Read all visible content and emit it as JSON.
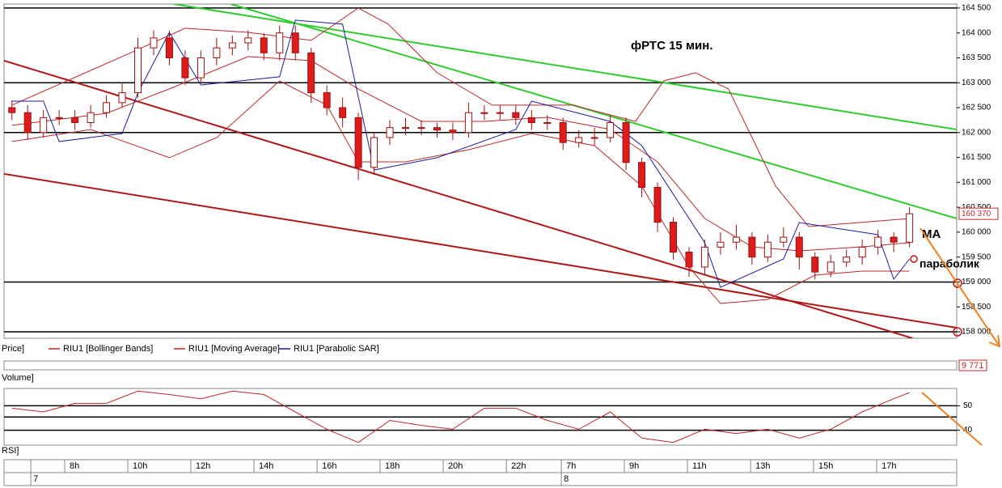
{
  "chart_data": [
    {
      "type": "candlestick",
      "title": "фРТС   15 мин.",
      "price_label": "Price]",
      "last_price_label": "160 370",
      "annotations": [
        "МА",
        "параболик"
      ],
      "xlim": [
        -0.5,
        60
      ],
      "ylim": [
        157870,
        164580
      ],
      "yticks": [
        {
          "value": 158000,
          "label": "158 000"
        },
        {
          "value": 158500,
          "label": "158 500"
        },
        {
          "value": 159000,
          "label": "159 000"
        },
        {
          "value": 159500,
          "label": "159 500"
        },
        {
          "value": 160000,
          "label": "160 000"
        },
        {
          "value": 160500,
          "label": "160 500"
        },
        {
          "value": 161000,
          "label": "161 000"
        },
        {
          "value": 161500,
          "label": "161 500"
        },
        {
          "value": 162000,
          "label": "162 000"
        },
        {
          "value": 162500,
          "label": "162 500"
        },
        {
          "value": 163000,
          "label": "163 000"
        },
        {
          "value": 163500,
          "label": "163 500"
        },
        {
          "value": 164000,
          "label": "164 000"
        },
        {
          "value": 164500,
          "label": "164 500"
        }
      ],
      "xticks": [
        {
          "value": 3.35,
          "label": "8h"
        },
        {
          "value": 7.36,
          "label": "10h"
        },
        {
          "value": 11.36,
          "label": "12h"
        },
        {
          "value": 15.37,
          "label": "14h"
        },
        {
          "value": 19.38,
          "label": "16h"
        },
        {
          "value": 23.38,
          "label": "18h"
        },
        {
          "value": 27.39,
          "label": "20h"
        },
        {
          "value": 31.4,
          "label": "22h"
        },
        {
          "value": 34.89,
          "label": "7h"
        },
        {
          "value": 38.89,
          "label": "9h"
        },
        {
          "value": 42.9,
          "label": "11h"
        },
        {
          "value": 46.91,
          "label": "13h"
        },
        {
          "value": 50.91,
          "label": "15h"
        },
        {
          "value": 54.92,
          "label": "17h"
        }
      ],
      "day_ticks": [
        {
          "value": 1.2,
          "label": "7"
        },
        {
          "value": 34.89,
          "label": "8"
        }
      ],
      "up_color": "#ffffff",
      "down_color": "#dd1c1c",
      "edge_color": "#a01010",
      "open": [
        162500,
        162400,
        162000,
        162300,
        162300,
        162200,
        162400,
        162600,
        162800,
        163700,
        163900,
        163500,
        163100,
        163500,
        163700,
        163800,
        163900,
        163600,
        164000,
        163600,
        162800,
        162500,
        162300,
        161300,
        161900,
        162100,
        162100,
        162100,
        162050,
        162000,
        162400,
        162400,
        162400,
        162300,
        162200,
        162200,
        161800,
        161900,
        161900,
        162200,
        161400,
        160900,
        160200,
        159600,
        159300,
        159700,
        159800,
        159900,
        159500,
        159800,
        159900,
        159500,
        159200,
        159400,
        159500,
        159700,
        159900,
        159800
      ],
      "high": [
        162650,
        162550,
        162450,
        162450,
        162450,
        162550,
        162750,
        163000,
        163900,
        164050,
        164050,
        163650,
        163650,
        163900,
        163950,
        164050,
        164000,
        164150,
        164150,
        163700,
        162950,
        162700,
        162400,
        162000,
        162250,
        162300,
        162250,
        162200,
        162200,
        162600,
        162550,
        162550,
        162550,
        162450,
        162350,
        162300,
        162050,
        162100,
        162350,
        162300,
        161500,
        161000,
        160300,
        159700,
        159850,
        160000,
        160150,
        160000,
        159950,
        160100,
        160000,
        159600,
        159550,
        159650,
        159850,
        160050,
        160000,
        160500
      ],
      "low": [
        162250,
        161850,
        161900,
        162150,
        162050,
        162100,
        162300,
        162500,
        162700,
        163550,
        163350,
        162950,
        163000,
        163350,
        163550,
        163650,
        163450,
        163450,
        163450,
        162600,
        162350,
        162100,
        161050,
        161150,
        161750,
        161950,
        161950,
        161900,
        161850,
        161900,
        162250,
        162250,
        162150,
        162050,
        162050,
        161650,
        161700,
        161750,
        161800,
        161250,
        160700,
        160000,
        159450,
        159100,
        159150,
        159550,
        159650,
        159350,
        159400,
        159700,
        159250,
        159050,
        159100,
        159300,
        159350,
        159550,
        159600,
        159700
      ],
      "close": [
        162400,
        162000,
        162300,
        162300,
        162200,
        162400,
        162600,
        162800,
        163700,
        163900,
        163500,
        163100,
        163500,
        163700,
        163800,
        163900,
        163600,
        164000,
        163600,
        162800,
        162500,
        162300,
        161300,
        161900,
        162100,
        162100,
        162100,
        162050,
        162000,
        162400,
        162400,
        162400,
        162300,
        162200,
        162200,
        161800,
        161900,
        161900,
        162200,
        161400,
        160900,
        160200,
        159600,
        159300,
        159700,
        159800,
        159900,
        159500,
        159800,
        159900,
        159500,
        159200,
        159400,
        159500,
        159700,
        159900,
        159800,
        160370
      ],
      "series": [
        {
          "name": "RIU1 [Bollinger Bands]",
          "color": "#c0282a",
          "upper": {
            "x": [
              0,
              7,
              11,
              15,
              19,
              22,
              23.9,
              27,
              30.5,
              35.6,
              39.6,
              41.4,
              43.4,
              45.5,
              48.5,
              50.6,
              57
            ],
            "values": [
              162550,
              163525,
              164094,
              164012,
              163850,
              164500,
              164175,
              163200,
              162550,
              162550,
              162225,
              163037,
              163200,
              162875,
              160925,
              160112,
              160275
            ]
          },
          "lower": {
            "x": [
              0,
              5,
              10,
              13,
              17,
              20,
              22,
              25,
              29,
              33,
              37,
              40,
              43,
              45,
              48,
              51,
              54,
              57
            ],
            "values": [
              161819,
              162062,
              161494,
              161900,
              163037,
              162550,
              161412,
              161412,
              161656,
              161981,
              161737,
              160925,
              159300,
              158569,
              158650,
              159137,
              159219,
              159219
            ]
          }
        },
        {
          "name": "RIU1 [Moving Average]",
          "color": "#c0282a",
          "x": [
            0,
            6,
            10,
            15,
            19,
            22,
            26,
            30,
            34,
            38,
            41,
            44,
            47,
            50,
            54,
            57
          ],
          "values": [
            162144,
            162387,
            162875,
            163525,
            163444,
            162875,
            162225,
            162225,
            162306,
            162062,
            161412,
            160275,
            159706,
            159625,
            159706,
            159788
          ]
        },
        {
          "name": "RIU1 [Parabolic SAR]",
          "color": "#1c1c9c",
          "x": [
            0,
            2,
            3,
            7,
            8,
            10,
            12,
            17,
            18,
            21,
            23,
            27,
            32,
            33,
            38,
            40,
            44,
            45,
            49,
            50,
            55,
            56,
            57
          ],
          "values": [
            162631,
            162631,
            161819,
            161981,
            162794,
            164012,
            162956,
            163119,
            164256,
            164175,
            161250,
            161494,
            162062,
            162631,
            162225,
            161737,
            159787,
            158894,
            159463,
            160194,
            159950,
            159056,
            159463
          ]
        }
      ],
      "levels": [
        164500,
        163000,
        162000,
        159000,
        158000
      ],
      "level_color": "#000000",
      "trendlines": [
        {
          "color": "#2ecc2e",
          "x": [
            10.3,
            60
          ],
          "values": [
            164580,
            162062
          ]
        },
        {
          "color": "#2ecc2e",
          "x": [
            13.9,
            60
          ],
          "values": [
            164580,
            160275
          ]
        },
        {
          "color": "#b01818",
          "x": [
            -0.5,
            57.2
          ],
          "values": [
            163444,
            157870
          ]
        },
        {
          "color": "#b01818",
          "x": [
            -0.5,
            60
          ],
          "values": [
            161169,
            158081
          ]
        }
      ]
    },
    {
      "type": "panel",
      "label": "Volume]",
      "last_value_label": "9 771"
    },
    {
      "type": "line",
      "label": "RSI]",
      "color": "#c0282a",
      "xlim": [
        -0.5,
        60
      ],
      "ylim": [
        33.9,
        57.1
      ],
      "yticks": [
        50,
        40
      ],
      "levels": [
        50,
        45.4,
        40
      ],
      "x": [
        0,
        2,
        4,
        6,
        8,
        10,
        12,
        14,
        16,
        18,
        20,
        22,
        24,
        26,
        28,
        30,
        32,
        34,
        36,
        38,
        40,
        42,
        44,
        46,
        48,
        50,
        52,
        54,
        56,
        57
      ],
      "values": [
        49,
        47.5,
        51,
        51,
        56,
        54.6,
        52.9,
        56,
        54.6,
        47.5,
        40.4,
        35,
        44,
        42,
        40.4,
        49,
        49,
        44,
        40.4,
        47.5,
        36.8,
        35,
        40.4,
        38.6,
        40.4,
        36.8,
        40.4,
        47.5,
        52.9,
        55.4
      ]
    }
  ]
}
